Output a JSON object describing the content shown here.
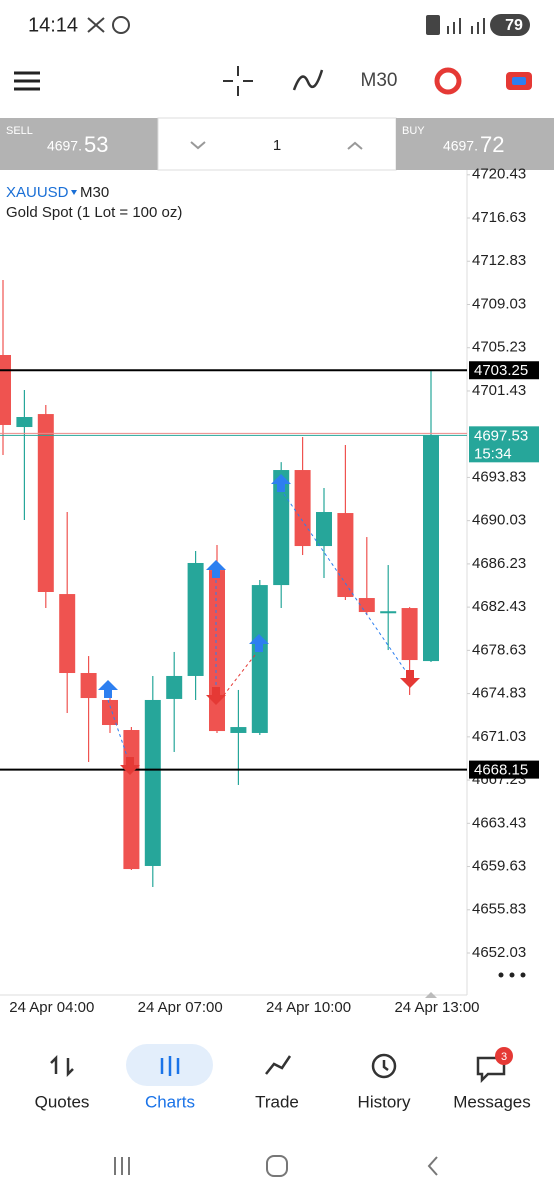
{
  "status_bar": {
    "time": "14:14",
    "battery": "79"
  },
  "toolbar": {
    "timeframe": "M30"
  },
  "trade_panel": {
    "sell_label": "SELL",
    "sell_price_prefix": "4697.",
    "sell_price_big": "53",
    "volume": "1",
    "buy_label": "BUY",
    "buy_price_prefix": "4697.",
    "buy_price_big": "72"
  },
  "chart_data": {
    "type": "candlestick",
    "symbol": "XAUUSD",
    "timeframe": "M30",
    "subtitle": "Gold Spot (1 Lot = 100 oz)",
    "categories": [
      null,
      null,
      "24 Apr 04:00",
      null,
      null,
      null,
      null,
      null,
      "24 Apr 07:00",
      null,
      null,
      null,
      null,
      null,
      "24 Apr 10:00",
      null,
      null,
      null,
      null,
      null,
      "24 Apr 13:00"
    ],
    "open": [
      4704.59,
      4698.26,
      4699.4,
      4683.58,
      4676.64,
      4674.27,
      4671.63,
      4659.68,
      4674.36,
      4676.38,
      4685.69,
      4671.37,
      4671.37,
      4684.37,
      4694.48,
      4687.8,
      4690.7,
      4683.23,
      4681.89,
      4682.35,
      4677.69
    ],
    "high": [
      4711.18,
      4701.51,
      4700.2,
      4690.79,
      4678.13,
      4675.15,
      4671.89,
      4676.38,
      4678.49,
      4687.36,
      4687.89,
      4675.15,
      4684.81,
      4695.18,
      4697.38,
      4692.9,
      4696.68,
      4688.59,
      4686.13,
      4682.43,
      4703.27
    ],
    "low": [
      4695.8,
      4690.09,
      4682.35,
      4673.12,
      4668.82,
      4671.37,
      4659.33,
      4657.83,
      4669.7,
      4674.27,
      4671.37,
      4666.8,
      4671.19,
      4682.35,
      4687.01,
      4684.99,
      4683.06,
      4681.74,
      4678.66,
      4674.71,
      4677.61
    ],
    "close": [
      4698.44,
      4699.14,
      4683.76,
      4676.64,
      4674.44,
      4672.07,
      4659.41,
      4674.27,
      4676.38,
      4686.31,
      4671.54,
      4671.89,
      4684.37,
      4694.48,
      4687.8,
      4690.79,
      4683.32,
      4682.0,
      4682.07,
      4677.78,
      4697.56
    ],
    "up_color": "#26a69a",
    "down_color": "#ef5350",
    "ylim": [
      4648.34,
      4720.85
    ],
    "yticks": [
      4720.43,
      4716.63,
      4712.83,
      4709.03,
      4705.23,
      4701.43,
      4693.83,
      4690.03,
      4686.23,
      4682.43,
      4678.63,
      4674.83,
      4671.03,
      4667.23,
      4663.43,
      4659.63,
      4655.83,
      4652.03
    ],
    "price_lines": [
      4703.25,
      4668.15
    ],
    "bid": 4697.53,
    "bid_color": "#26a69a",
    "countdown": "15:34"
  },
  "bottom_nav": {
    "items": [
      "Quotes",
      "Charts",
      "Trade",
      "History",
      "Messages"
    ],
    "messages_badge": "3"
  }
}
